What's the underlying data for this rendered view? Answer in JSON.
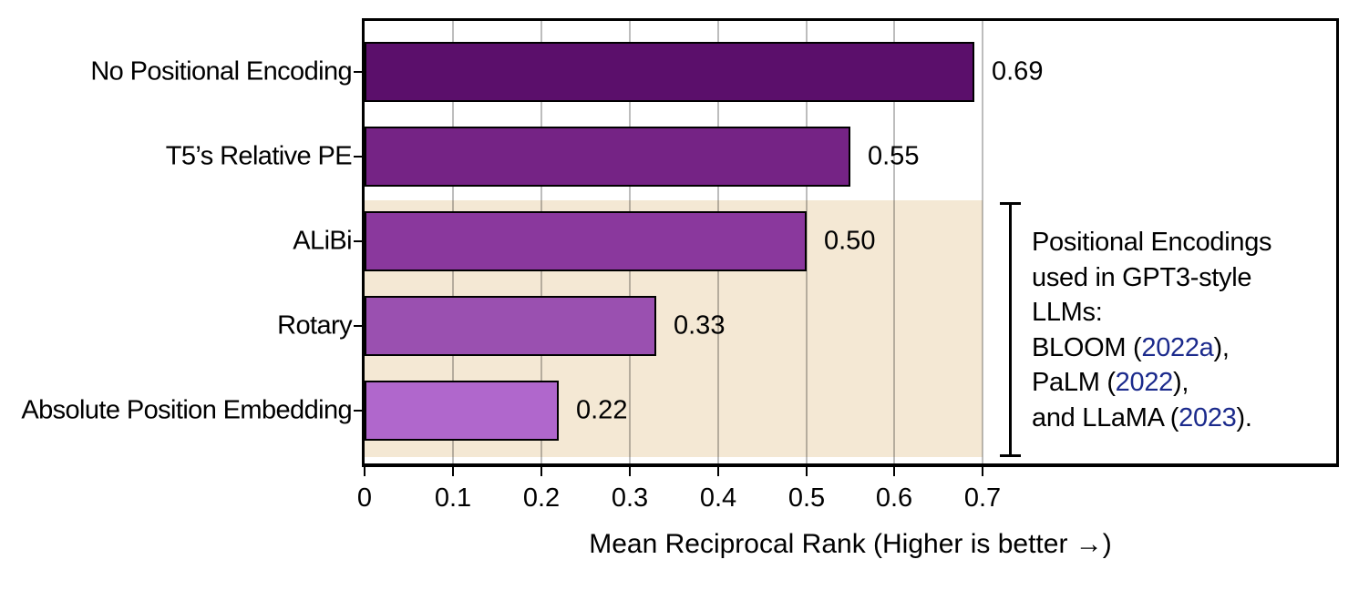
{
  "chart_data": {
    "type": "bar",
    "orientation": "horizontal",
    "title": "",
    "xlabel": "Mean Reciprocal Rank (Higher is better →)",
    "ylabel": "",
    "categories": [
      "No Positional Encoding",
      "T5’s Relative PE",
      "ALiBi",
      "Rotary",
      "Absolute Position Embedding"
    ],
    "values": [
      0.69,
      0.55,
      0.5,
      0.33,
      0.22
    ],
    "value_labels": [
      "0.69",
      "0.55",
      "0.50",
      "0.33",
      "0.22"
    ],
    "bar_colors": [
      "#5b0f6b",
      "#752385",
      "#8a389d",
      "#9a50b0",
      "#b067cc"
    ],
    "xlim": [
      0,
      1.1
    ],
    "x_ticks": [
      0,
      0.1,
      0.2,
      0.3,
      0.4,
      0.5,
      0.6,
      0.7
    ],
    "x_tick_labels": [
      "0",
      "0.1",
      "0.2",
      "0.3",
      "0.4",
      "0.5",
      "0.6",
      "0.7"
    ],
    "grid": "vertical",
    "highlight_region": {
      "covers_categories": [
        "ALiBi",
        "Rotary",
        "Absolute Position Embedding"
      ],
      "x_range": [
        0,
        0.7
      ],
      "color": "#f4e8d4"
    },
    "annotation": {
      "lines": [
        [
          {
            "text": "Positional Encodings"
          }
        ],
        [
          {
            "text": "used in GPT3-style"
          }
        ],
        [
          {
            "text": "LLMs:"
          }
        ],
        [
          {
            "text": "BLOOM ("
          },
          {
            "text": "2022a",
            "link": true
          },
          {
            "text": "),"
          }
        ],
        [
          {
            "text": "PaLM ("
          },
          {
            "text": "2022",
            "link": true
          },
          {
            "text": "),"
          }
        ],
        [
          {
            "text": "and LLaMA ("
          },
          {
            "text": "2023",
            "link": true
          },
          {
            "text": ")."
          }
        ]
      ],
      "link_color": "#1b2a8c"
    },
    "colors": {
      "grid": "#bdbdbd",
      "frame": "#000000",
      "text": "#000000",
      "background": "#ffffff"
    }
  }
}
